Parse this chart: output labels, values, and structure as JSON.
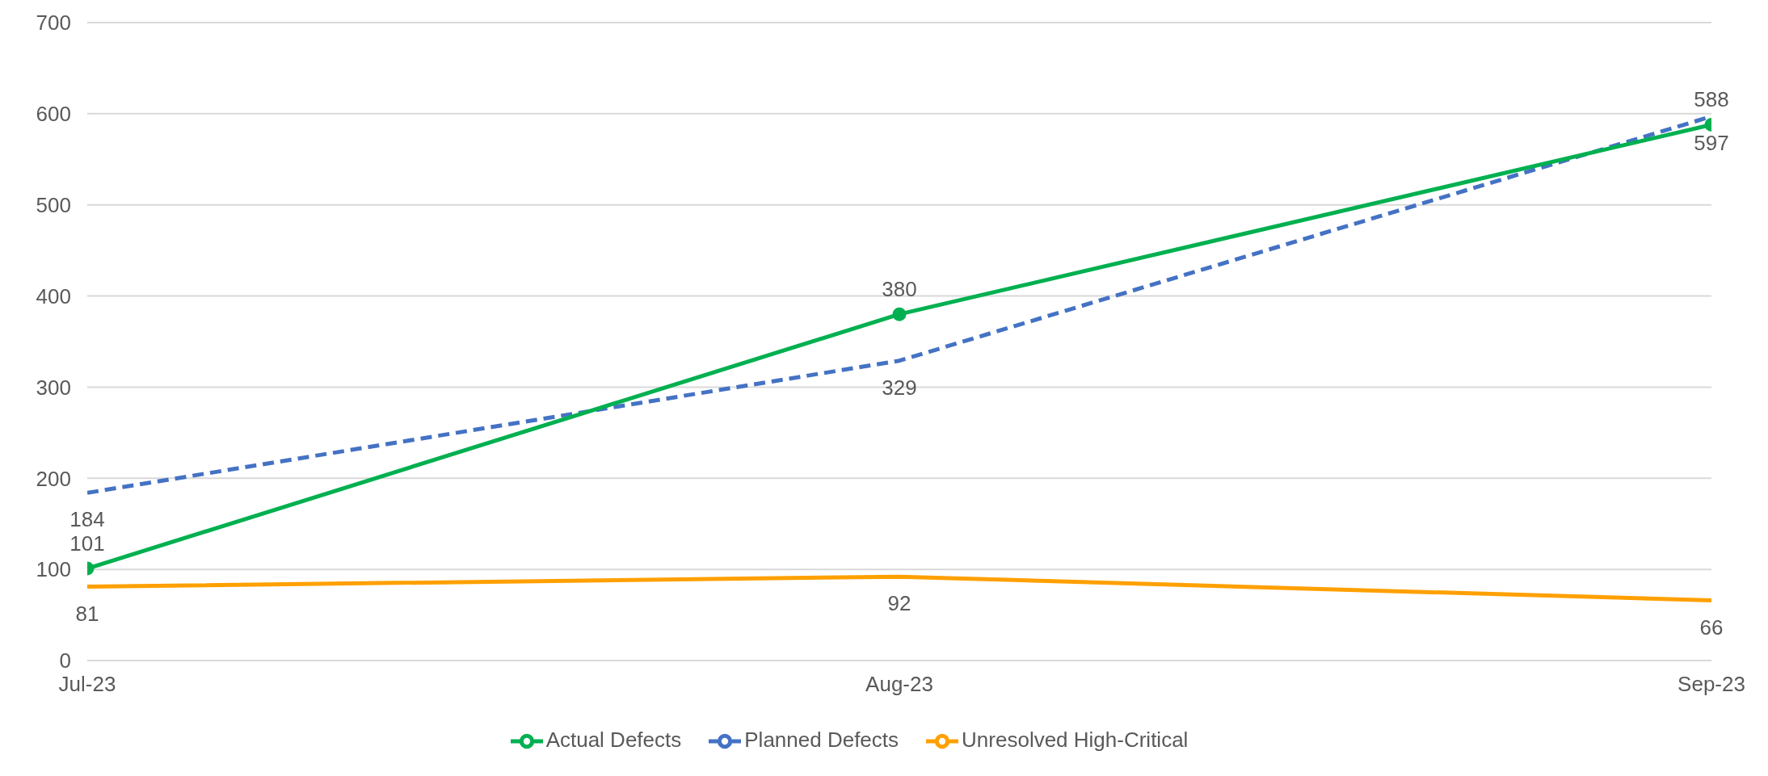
{
  "chart_data": {
    "type": "line",
    "categories": [
      "Jul-23",
      "Aug-23",
      "Sep-23"
    ],
    "series": [
      {
        "name": "Planned Defects",
        "color": "#4472c4",
        "values": [
          184,
          329,
          597
        ],
        "line_style": "dashed",
        "marker": "none"
      },
      {
        "name": "Actual Defects",
        "color": "#00b050",
        "values": [
          101,
          380,
          588
        ],
        "line_style": "solid",
        "marker": "circle"
      },
      {
        "name": "Unresolved High-Critical",
        "color": "#ffa000",
        "values": [
          81,
          92,
          66
        ],
        "line_style": "solid",
        "marker": "none"
      }
    ],
    "ylim": [
      0,
      700
    ],
    "yticks": [
      0,
      100,
      200,
      300,
      400,
      500,
      600,
      700
    ],
    "grid": "y",
    "legend": "bottom",
    "data_labels": true
  }
}
